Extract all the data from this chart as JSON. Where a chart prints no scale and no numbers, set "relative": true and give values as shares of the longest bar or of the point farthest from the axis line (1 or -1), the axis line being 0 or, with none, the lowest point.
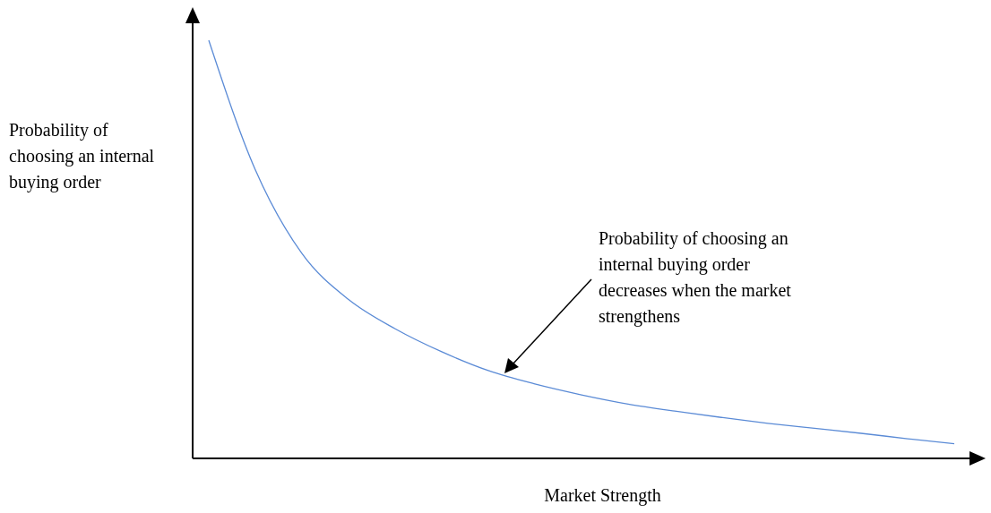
{
  "chart_data": {
    "type": "line",
    "xlabel": "Market Strength",
    "ylabel": "Probability of choosing an internal buying order",
    "categories": [
      null,
      null,
      null,
      null,
      null,
      null,
      null,
      null,
      null,
      null,
      null,
      null,
      null,
      null,
      null,
      null,
      null
    ],
    "series": [
      {
        "color": "#5b8bd6",
        "values": [
          1,
          0.69,
          0.49,
          0.38,
          0.31,
          0.255,
          0.21,
          0.178,
          0.152,
          0.13,
          0.113,
          0.098,
          0.084,
          0.072,
          0.06,
          0.047,
          0.035
        ]
      }
    ],
    "annotations": [
      "Probability of choosing an internal buying order decreases when the market strengthens"
    ],
    "relative": true
  }
}
